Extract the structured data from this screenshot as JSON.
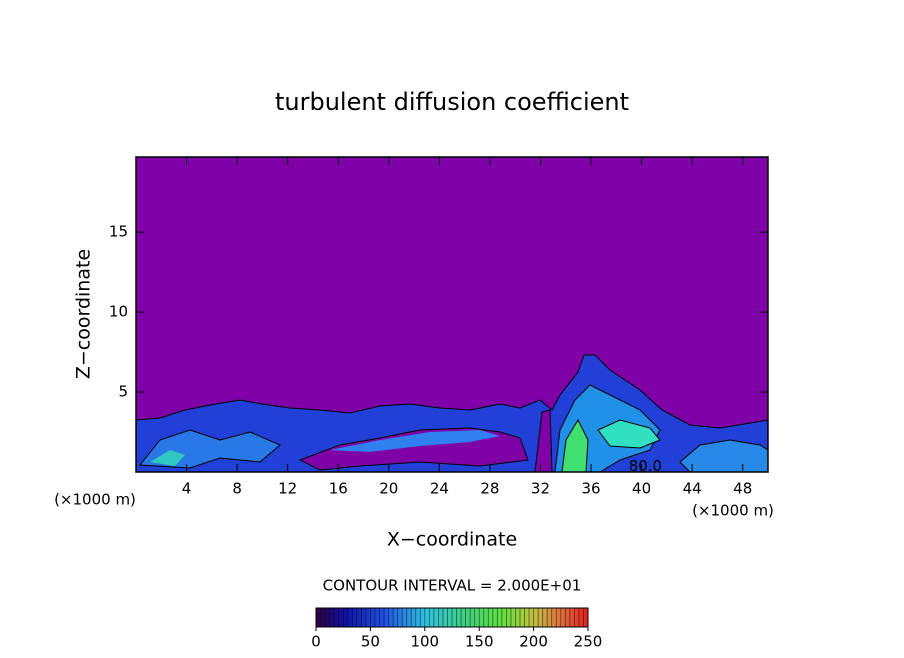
{
  "chart_data": {
    "type": "contour",
    "title": "turbulent diffusion coefficient",
    "xlabel": "X−coordinate",
    "ylabel": "Z−coordinate",
    "x_unit": "(×1000 m)",
    "y_unit": "(×1000 m)",
    "xlim": [
      0,
      50
    ],
    "ylim": [
      0,
      19.7
    ],
    "xticks": [
      4,
      8,
      12,
      16,
      20,
      24,
      28,
      32,
      36,
      40,
      44,
      48
    ],
    "yticks": [
      5,
      10,
      15
    ],
    "contour_interval_text": "CONTOUR INTERVAL = 2.000E+01",
    "contour_label": {
      "text": "80.0",
      "x": 40.3,
      "y": 0.1
    },
    "colorbar": {
      "clim": [
        0,
        250
      ],
      "ticks": [
        0,
        50,
        100,
        150,
        200,
        250
      ]
    },
    "background_color": "#8000a8"
  }
}
